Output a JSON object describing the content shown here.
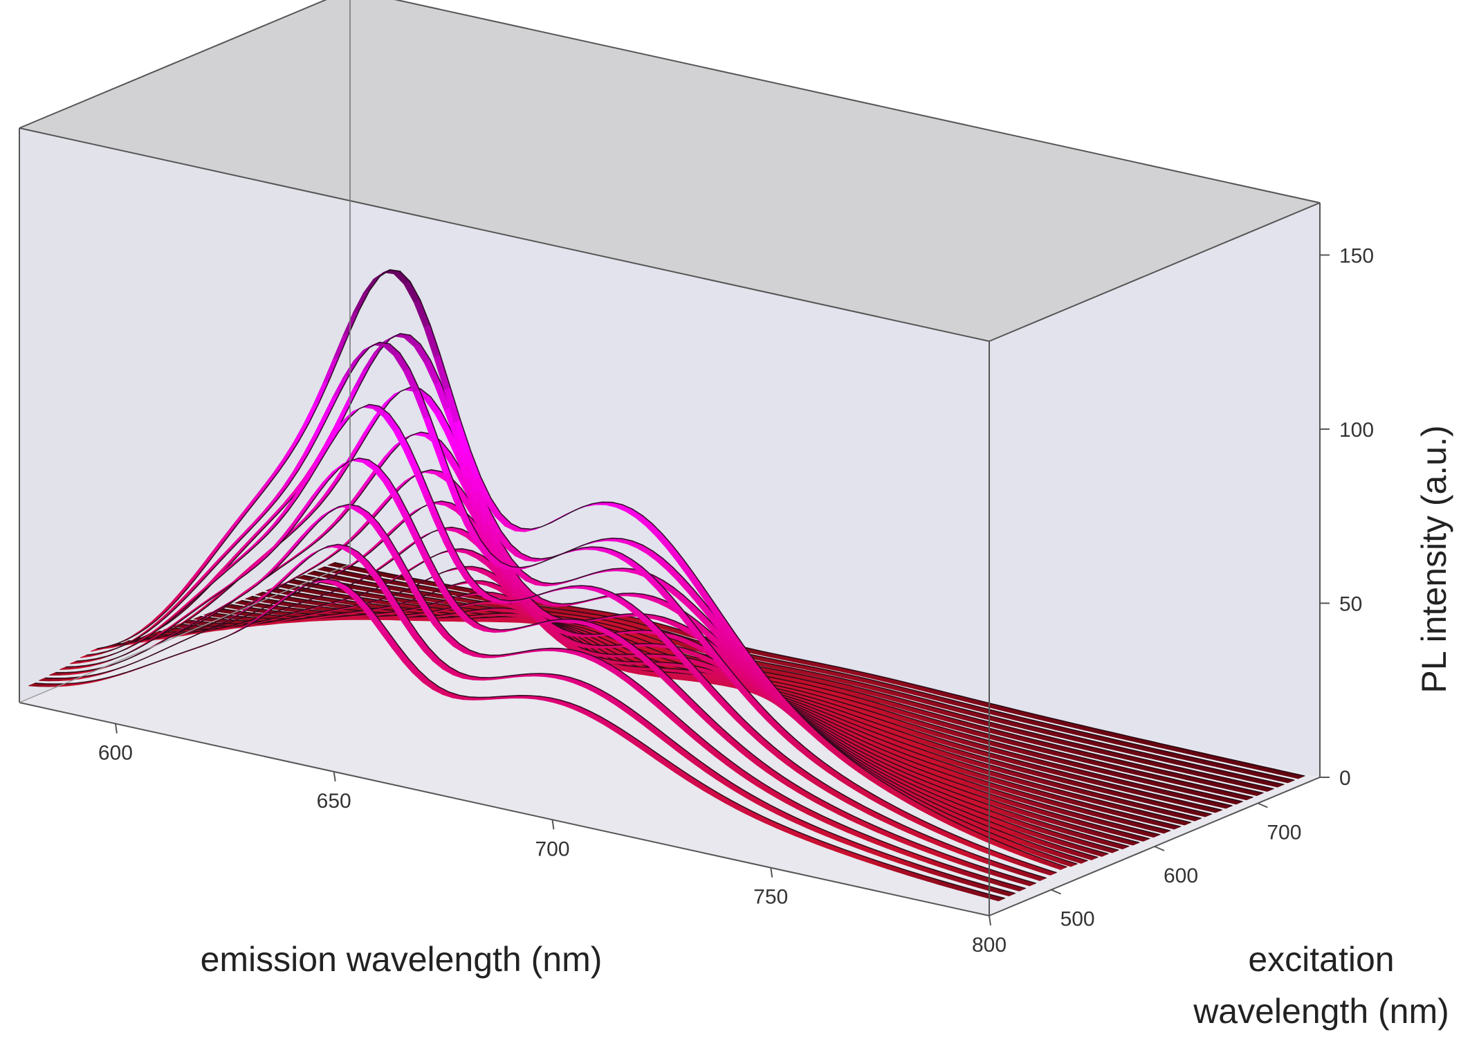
{
  "chart_data": {
    "type": "surface",
    "title": "",
    "xlabel": "emission wavelength (nm)",
    "ylabel": "excitation wavelength (nm)",
    "ylabel_lines": [
      "excitation",
      "wavelength (nm)"
    ],
    "zlabel": "PL intensity (a.u.)",
    "xlim": [
      578,
      800
    ],
    "ylim": [
      440,
      760
    ],
    "zlim": [
      0,
      165
    ],
    "x_ticks": [
      600,
      650,
      700,
      750,
      800
    ],
    "y_ticks": [
      500,
      600,
      700
    ],
    "z_ticks": [
      0,
      50,
      100,
      150
    ],
    "emission_peaks_nm": [
      622,
      648,
      695
    ],
    "excitation_slices_nm": [
      455,
      465,
      475,
      485,
      495,
      505,
      515,
      525,
      535,
      545,
      555,
      565,
      575,
      585,
      595,
      605,
      615,
      625,
      635,
      645,
      655,
      665,
      675,
      685,
      695,
      705,
      715,
      725,
      735,
      745
    ],
    "max_intensity": 155,
    "max_at_excitation_nm": 515,
    "max_at_emission_nm": 648,
    "grid": false,
    "legend": "none",
    "colors": {
      "low": "#2a0000",
      "red": "#c8102e",
      "mid": "#e0007a",
      "high": "#ff00ff",
      "top": "#1a0010",
      "back_wall": "#e2e3ec",
      "side_wall": "#e2e3ea",
      "ceiling": "#d2d2d5",
      "frame": "#555555"
    }
  }
}
